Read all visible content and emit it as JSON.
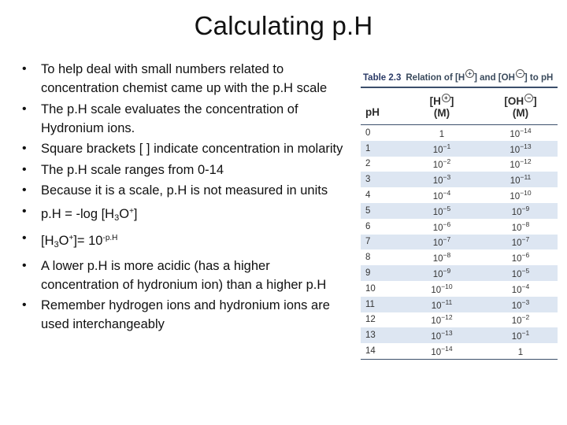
{
  "title": "Calculating p.H",
  "bullets": [
    {
      "text": "To help deal with small numbers related to concentration chemist came up with the p.H scale"
    },
    {
      "text": "The p.H scale evaluates the concentration of Hydronium ions."
    },
    {
      "text": "Square brackets [ ] indicate concentration in molarity"
    },
    {
      "text": "The p.H scale ranges from 0-14"
    },
    {
      "text": "Because it is a scale, p.H is not measured in units"
    },
    {
      "prefix": "p.H = -log [H",
      "sub": "3",
      "mid": "O",
      "sup": "+",
      "suffix": "]"
    },
    {
      "prefix": "[H",
      "sub": "3",
      "mid": "O",
      "sup": "+",
      "suffix": "]= 10",
      "sup2": "-p.H"
    },
    {
      "text": "A lower p.H is more acidic (has a higher concentration of hydronium ion) than a higher p.H"
    },
    {
      "text": "Remember hydrogen ions and hydronium ions are used interchangeably"
    }
  ],
  "table": {
    "caption_num": "Table 2.3",
    "caption_pre": "Relation of [H",
    "caption_mid": "] and [OH",
    "caption_post": "] to pH",
    "plus_sign": "+",
    "minus_sign": "−",
    "header": {
      "ph": "pH",
      "h_pre": "[H",
      "h_post": "]",
      "oh_pre": "[OH",
      "oh_post": "]",
      "unit": "(M)"
    },
    "rows": [
      {
        "ph": "0",
        "h_base": "1",
        "h_exp": "",
        "oh_base": "10",
        "oh_exp": "−14"
      },
      {
        "ph": "1",
        "h_base": "10",
        "h_exp": "−1",
        "oh_base": "10",
        "oh_exp": "−13"
      },
      {
        "ph": "2",
        "h_base": "10",
        "h_exp": "−2",
        "oh_base": "10",
        "oh_exp": "−12"
      },
      {
        "ph": "3",
        "h_base": "10",
        "h_exp": "−3",
        "oh_base": "10",
        "oh_exp": "−11"
      },
      {
        "ph": "4",
        "h_base": "10",
        "h_exp": "−4",
        "oh_base": "10",
        "oh_exp": "−10"
      },
      {
        "ph": "5",
        "h_base": "10",
        "h_exp": "−5",
        "oh_base": "10",
        "oh_exp": "−9"
      },
      {
        "ph": "6",
        "h_base": "10",
        "h_exp": "−6",
        "oh_base": "10",
        "oh_exp": "−8"
      },
      {
        "ph": "7",
        "h_base": "10",
        "h_exp": "−7",
        "oh_base": "10",
        "oh_exp": "−7"
      },
      {
        "ph": "8",
        "h_base": "10",
        "h_exp": "−8",
        "oh_base": "10",
        "oh_exp": "−6"
      },
      {
        "ph": "9",
        "h_base": "10",
        "h_exp": "−9",
        "oh_base": "10",
        "oh_exp": "−5"
      },
      {
        "ph": "10",
        "h_base": "10",
        "h_exp": "−10",
        "oh_base": "10",
        "oh_exp": "−4"
      },
      {
        "ph": "11",
        "h_base": "10",
        "h_exp": "−11",
        "oh_base": "10",
        "oh_exp": "−3"
      },
      {
        "ph": "12",
        "h_base": "10",
        "h_exp": "−12",
        "oh_base": "10",
        "oh_exp": "−2"
      },
      {
        "ph": "13",
        "h_base": "10",
        "h_exp": "−13",
        "oh_base": "10",
        "oh_exp": "−1"
      },
      {
        "ph": "14",
        "h_base": "10",
        "h_exp": "−14",
        "oh_base": "1",
        "oh_exp": ""
      }
    ]
  },
  "colors": {
    "rule": "#3b4f6b",
    "stripe": "#dde6f2",
    "caption": "#3a4a5c"
  }
}
